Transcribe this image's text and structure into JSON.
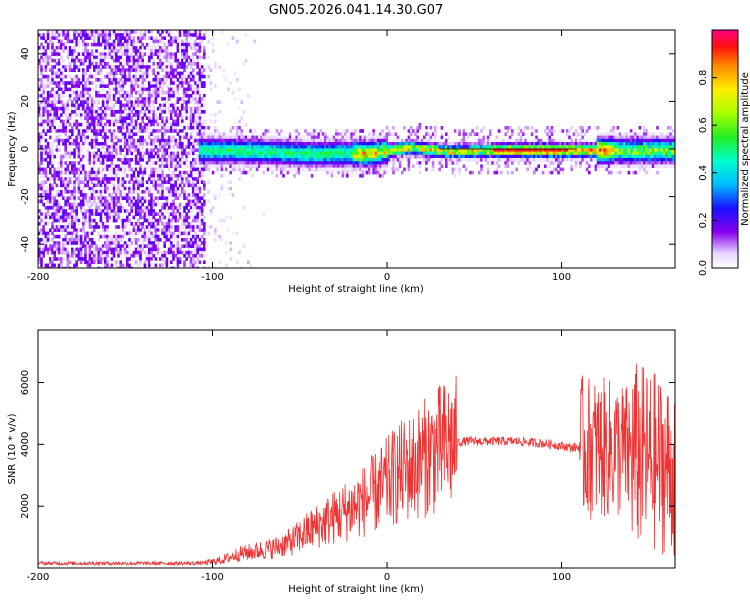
{
  "title": "GN05.2026.041.14.30.G07",
  "chart_data": [
    {
      "type": "heatmap",
      "xlabel": "Height of straight line (km)",
      "ylabel": "Frequency (Hz)",
      "xlim": [
        -200,
        165
      ],
      "ylim": [
        -50,
        50
      ],
      "x_ticks": [
        -200,
        -100,
        0,
        100
      ],
      "y_ticks": [
        -40,
        -20,
        0,
        20,
        40
      ],
      "colorbar": {
        "label": "Normalized spectral amplitude",
        "range": [
          0,
          1
        ],
        "ticks": [
          "0.0",
          "0.2",
          "0.4",
          "0.6",
          "0.8"
        ]
      },
      "trace": {
        "noise_region_x": [
          -200,
          -105
        ],
        "signal_start_x": -108,
        "peak_frequency_hz": 0,
        "strongest_segment_x": [
          60,
          100
        ]
      }
    },
    {
      "type": "line",
      "xlabel": "Height of straight line (km)",
      "ylabel": "SNR (10 * v/v)",
      "xlim": [
        -200,
        165
      ],
      "ylim": [
        0,
        7700
      ],
      "x_ticks": [
        -200,
        -100,
        0,
        100
      ],
      "y_ticks": [
        2000,
        4000,
        6000
      ],
      "color": "#ee3333",
      "series": [
        {
          "name": "SNR",
          "x": [
            -200,
            -180,
            -160,
            -140,
            -120,
            -105,
            -95,
            -85,
            -75,
            -65,
            -55,
            -45,
            -35,
            -25,
            -15,
            -5,
            5,
            15,
            25,
            35,
            45,
            55,
            65,
            75,
            85,
            95,
            105,
            115,
            125,
            135,
            145,
            155,
            165
          ],
          "values": [
            150,
            150,
            150,
            150,
            150,
            160,
            250,
            450,
            550,
            650,
            850,
            1200,
            1500,
            1800,
            2100,
            2500,
            3000,
            3300,
            3700,
            4000,
            4100,
            4100,
            4100,
            4100,
            4050,
            4000,
            3900,
            3900,
            3850,
            3800,
            3600,
            3400,
            3100
          ]
        }
      ]
    }
  ]
}
